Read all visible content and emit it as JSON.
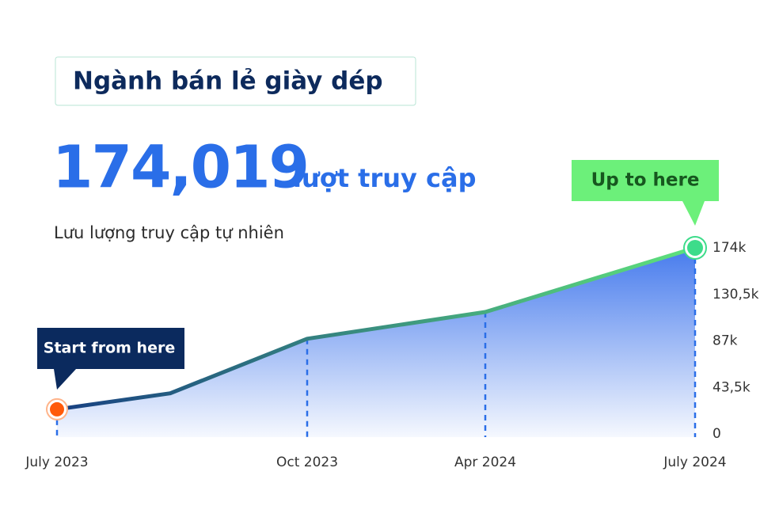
{
  "chart_data": {
    "type": "area",
    "title": "Ngành bán lẻ giày dép",
    "headline_value": {
      "value": 174019,
      "label": "174,019"
    },
    "headline_unit": "lượt truy cập",
    "subtitle": "Lưu lượng truy cập tự nhiên",
    "annotations": [
      "Start from here",
      "Up to here"
    ],
    "categories": [
      "July 2023",
      null,
      "Oct 2023",
      "Apr 2024",
      "July 2024"
    ],
    "values": [
      23000,
      38000,
      89000,
      114000,
      174019
    ],
    "line_colors": [
      "#173f82",
      "#5ee27c"
    ],
    "area_color": "#3d74ec",
    "ylim": [
      0,
      174000
    ],
    "yticks": [
      0,
      {
        "value": 43500,
        "label": "43,5k"
      },
      {
        "value": 87000,
        "label": "87k"
      },
      {
        "value": 130500,
        "label": "130,5k"
      },
      {
        "value": 174000,
        "label": "174k"
      }
    ]
  }
}
